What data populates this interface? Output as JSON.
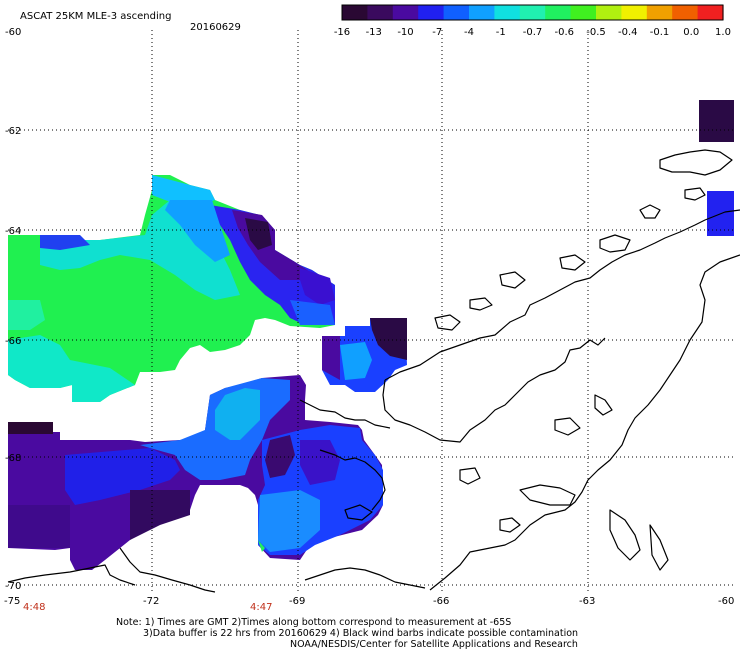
{
  "header": {
    "title": "ASCAT 25KM MLE-3 ascending",
    "date": "20160629"
  },
  "colorbar": {
    "colors": [
      "#2a0833",
      "#3a0a5e",
      "#4a0aa0",
      "#2020f0",
      "#1060ff",
      "#10a0ff",
      "#10e0e0",
      "#20f0b0",
      "#20f060",
      "#40f020",
      "#b0f010",
      "#f0f000",
      "#f0a000",
      "#f06000",
      "#f02020"
    ],
    "labels": [
      "-16",
      "-13",
      "-10",
      "-7",
      "-4",
      "-1",
      "-0.7",
      "-0.6",
      "-0.5",
      "-0.4",
      "-0.1",
      "0.0",
      "1.0"
    ]
  },
  "axes": {
    "lat_labels": [
      "-60",
      "-62",
      "-64",
      "-66",
      "-68",
      "-70"
    ],
    "lon_labels": [
      "-75",
      "-72",
      "-69",
      "-66",
      "-63",
      "-60"
    ]
  },
  "time_labels": [
    "4:48",
    "4:47"
  ],
  "notes": {
    "line1": "Note: 1) Times are GMT 2)Times along bottom correspond to measurement at -65S",
    "line2": "3)Data buffer is 22 hrs from 20160629 4) Black wind barbs indicate possible contamination",
    "line3": "NOAA/NESDIS/Center for Satellite Applications and Research"
  }
}
